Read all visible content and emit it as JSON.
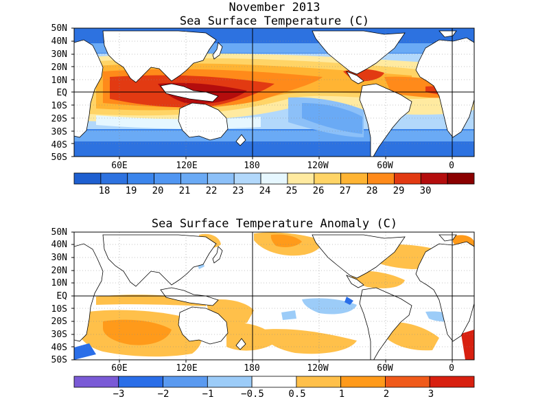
{
  "title": "November 2013",
  "top_panel": {
    "title": "Sea Surface Temperature (C)",
    "lat_labels": [
      "50N",
      "40N",
      "30N",
      "20N",
      "10N",
      "EQ",
      "10S",
      "20S",
      "30S",
      "40S",
      "50S"
    ],
    "lon_labels": [
      "60E",
      "120E",
      "180",
      "120W",
      "60W",
      "0"
    ],
    "colorbar": {
      "labels": [
        "18",
        "19",
        "20",
        "21",
        "22",
        "23",
        "24",
        "25",
        "26",
        "27",
        "28",
        "29",
        "30"
      ],
      "colors": [
        "#1e5fd0",
        "#2d72e0",
        "#3b85ec",
        "#5096f2",
        "#6aaaf5",
        "#8cc0f8",
        "#b2d8fb",
        "#e6f7ff",
        "#ffeaa0",
        "#ffd466",
        "#ffb433",
        "#ff8a1a",
        "#e23a12",
        "#b40d0d",
        "#8a0000"
      ]
    }
  },
  "bottom_panel": {
    "title": "Sea Surface Temperature Anomaly (C)",
    "lat_labels": [
      "50N",
      "40N",
      "30N",
      "20N",
      "10N",
      "EQ",
      "10S",
      "20S",
      "30S",
      "40S",
      "50S"
    ],
    "lon_labels": [
      "60E",
      "120E",
      "180",
      "120W",
      "60W",
      "0"
    ],
    "colorbar": {
      "labels": [
        "−3",
        "−2",
        "−1",
        "−0.5",
        "0.5",
        "1",
        "2",
        "3"
      ],
      "colors": [
        "#7a5ad6",
        "#2a6ee8",
        "#5a9af0",
        "#9cccf8",
        "#ffffff",
        "#ffc04a",
        "#ff9a1a",
        "#f05a1a",
        "#d82010"
      ]
    }
  }
}
